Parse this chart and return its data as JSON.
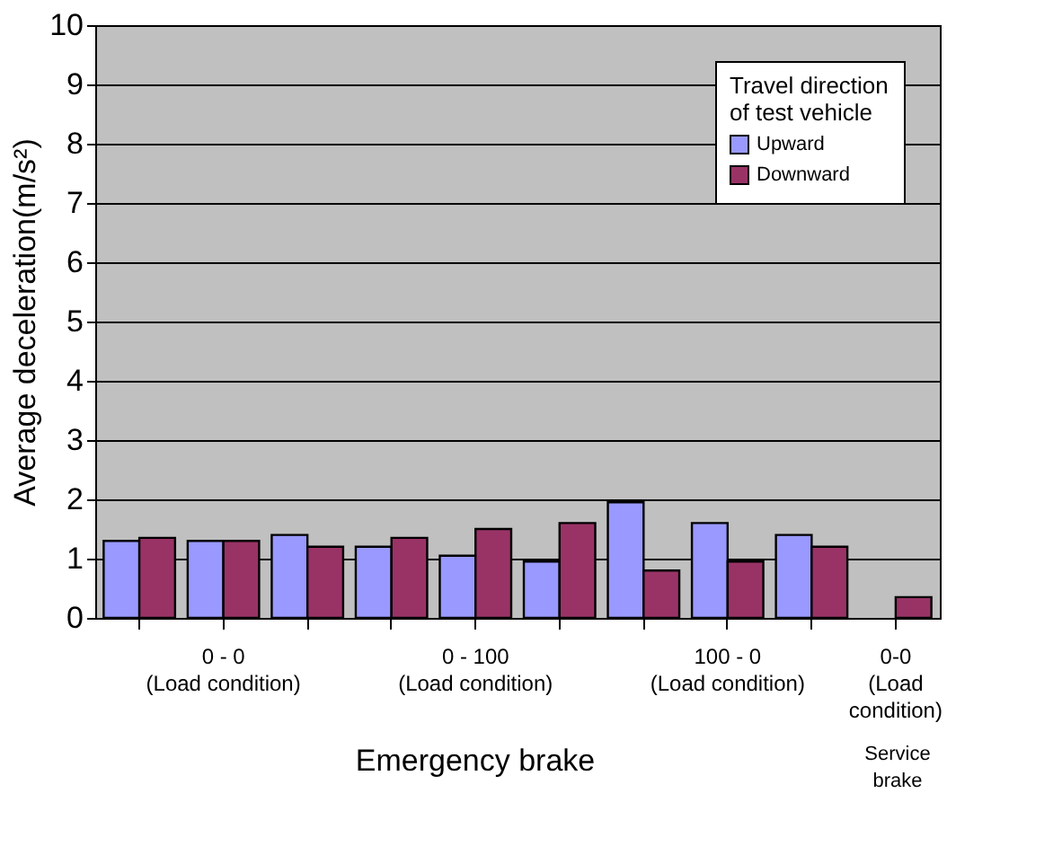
{
  "chart_data": {
    "type": "bar",
    "ylabel": "Average deceleration(m/s²)",
    "legend_title": "Travel direction\nof  test vehicle",
    "categories": [
      null,
      "0 - 0\n(Load condition)",
      null,
      null,
      "0 - 100\n(Load condition)",
      null,
      null,
      "100 - 0\n(Load condition)",
      null,
      "0-0\n(Load\ncondition)"
    ],
    "series": [
      {
        "name": "Upward",
        "color": "#9999ff",
        "values": [
          1.3,
          1.3,
          1.4,
          1.2,
          1.05,
          0.95,
          1.95,
          1.6,
          1.4,
          null
        ]
      },
      {
        "name": "Downward",
        "color": "#993366",
        "values": [
          1.35,
          1.3,
          1.2,
          1.35,
          1.5,
          1.6,
          0.8,
          0.95,
          1.2,
          0.35
        ]
      }
    ],
    "annotations": [
      "Emergency brake",
      "Service\nbrake"
    ],
    "ylim": [
      0,
      10
    ],
    "yticks": [
      0,
      1,
      2,
      3,
      4,
      5,
      6,
      7,
      8,
      9,
      10
    ],
    "grid": "y",
    "legend": "top right"
  }
}
